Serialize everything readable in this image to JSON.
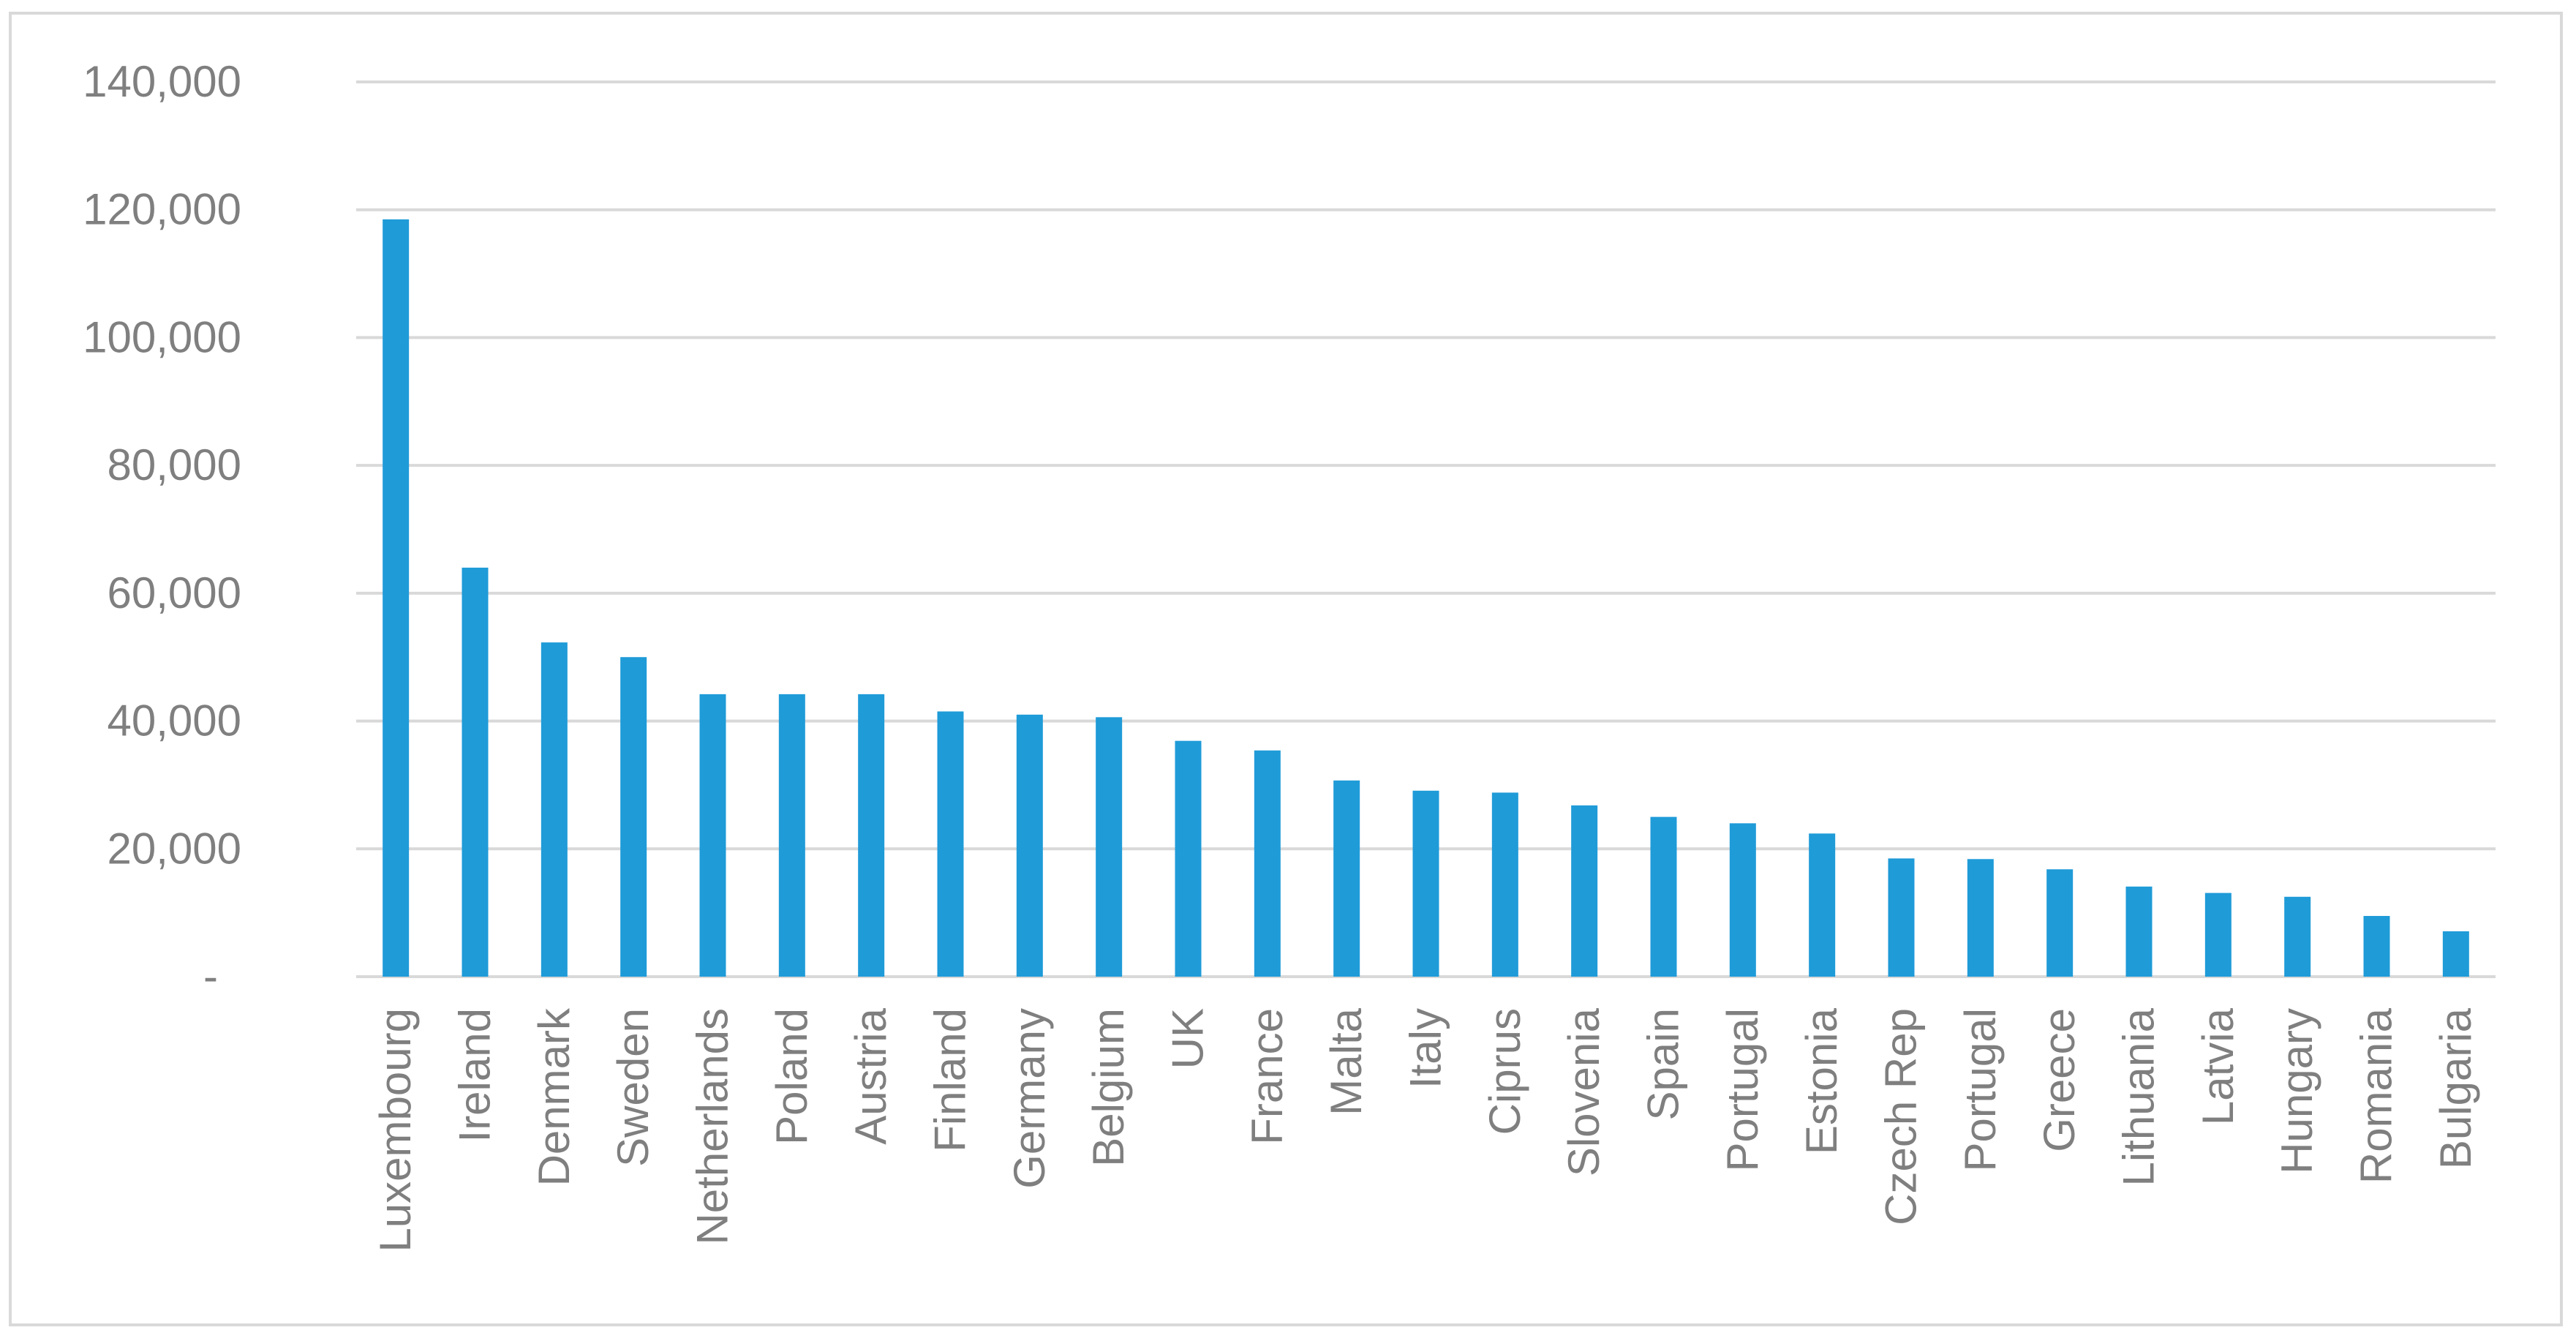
{
  "chart_data": {
    "type": "bar",
    "title": "",
    "xlabel": "",
    "ylabel": "",
    "ylim": [
      0,
      140000
    ],
    "yticks": [
      0,
      20000,
      40000,
      60000,
      80000,
      100000,
      120000,
      140000
    ],
    "ytick_labels": [
      "-",
      "20,000",
      "40,000",
      "60,000",
      "80,000",
      "100,000",
      "120,000",
      "140,000"
    ],
    "grid": true,
    "legend": "none",
    "bar_color": "#1f9bd8",
    "categories": [
      "Luxembourg",
      "Ireland",
      "Denmark",
      "Sweden",
      "Netherlands",
      "Poland",
      "Austria",
      "Finland",
      "Germany",
      "Belgium",
      "UK",
      "France",
      "Malta",
      "Italy",
      "Ciprus",
      "Slovenia",
      "Spain",
      "Portugal",
      "Estonia",
      "Czech Rep",
      "Portugal",
      "Greece",
      "Lithuania",
      "Latvia",
      "Hungary",
      "Romania",
      "Bulgaria"
    ],
    "values": [
      118500,
      64000,
      52300,
      50000,
      44200,
      44200,
      44200,
      41500,
      41000,
      40600,
      36900,
      35400,
      30700,
      29100,
      28800,
      26800,
      25000,
      24000,
      22400,
      18500,
      18400,
      16800,
      14100,
      13100,
      12500,
      9500,
      7100
    ]
  }
}
